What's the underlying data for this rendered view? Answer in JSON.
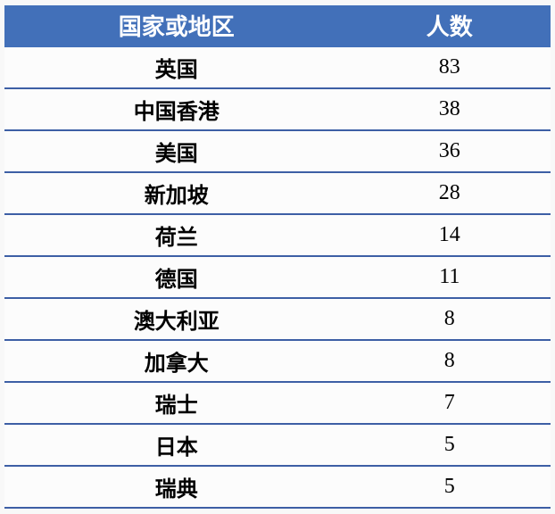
{
  "table": {
    "type": "table",
    "header_bg": "#4270b9",
    "header_fg": "#ffffff",
    "border_color": "#3d5fa5",
    "background_color": "#fcfcfc",
    "columns": [
      {
        "key": "region",
        "label": "国家或地区",
        "align": "center",
        "weight_header": "bold",
        "weight_cell": "bold"
      },
      {
        "key": "count",
        "label": "人数",
        "align": "center",
        "weight_header": "bold",
        "weight_cell": "normal"
      }
    ],
    "font_size_header": 26,
    "font_size_cell": 24,
    "rows": [
      {
        "region": "英国",
        "count": "83"
      },
      {
        "region": "中国香港",
        "count": "38"
      },
      {
        "region": "美国",
        "count": "36"
      },
      {
        "region": "新加坡",
        "count": "28"
      },
      {
        "region": "荷兰",
        "count": "14"
      },
      {
        "region": "德国",
        "count": "11"
      },
      {
        "region": "澳大利亚",
        "count": "8"
      },
      {
        "region": "加拿大",
        "count": "8"
      },
      {
        "region": "瑞士",
        "count": "7"
      },
      {
        "region": "日本",
        "count": "5"
      },
      {
        "region": "瑞典",
        "count": "5"
      }
    ]
  }
}
